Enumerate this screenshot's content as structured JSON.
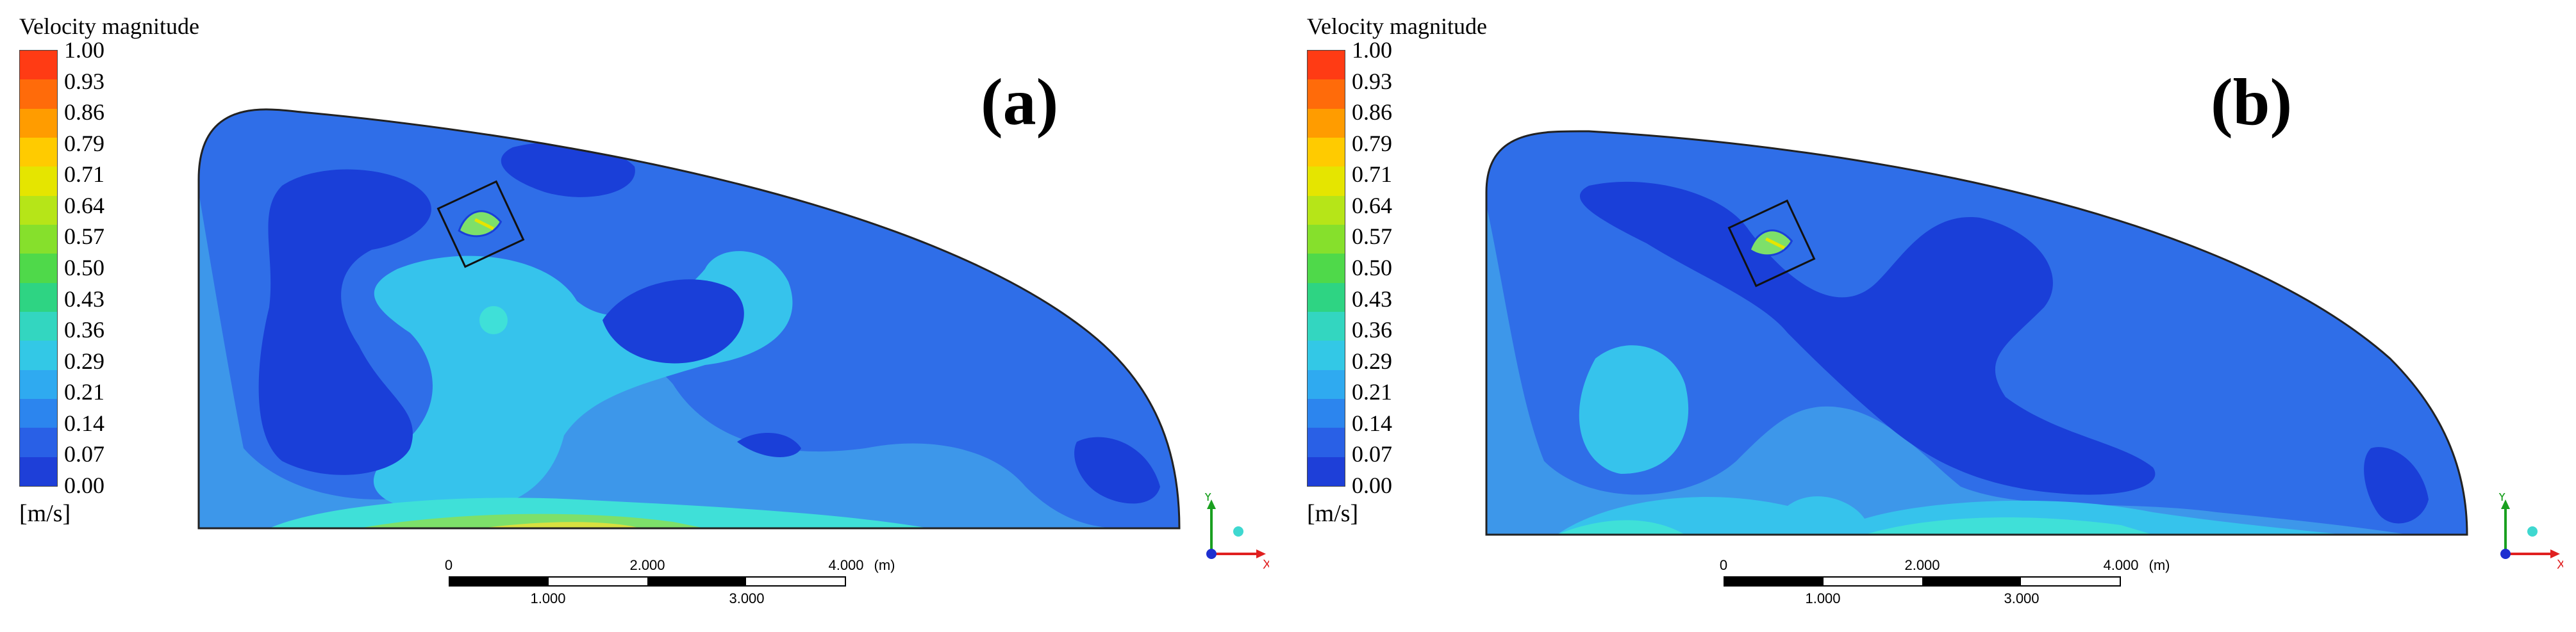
{
  "colors": {
    "deep": "#1a3fd8",
    "base": "#2f6ee8",
    "mid": "#3d97ea",
    "light": "#36c3ec",
    "cyan": "#3fe0d8",
    "green": "#7de06a",
    "yellow": "#d8e040"
  },
  "legend": {
    "title": "Velocity magnitude",
    "unit": "[m/s]",
    "ticks": [
      "1.00",
      "0.93",
      "0.86",
      "0.79",
      "0.71",
      "0.64",
      "0.57",
      "0.50",
      "0.43",
      "0.36",
      "0.29",
      "0.21",
      "0.14",
      "0.07",
      "0.00"
    ],
    "colors": [
      "#ff3b14",
      "#ff6b0a",
      "#ff9c00",
      "#ffcb00",
      "#e5e500",
      "#b6e518",
      "#86e02c",
      "#4fd94a",
      "#2ed483",
      "#33d6c0",
      "#33c8e6",
      "#2faaf0",
      "#2c85ee",
      "#2960e6",
      "#1e3fd8"
    ]
  },
  "scale": {
    "top_labels": [
      "0",
      "2.000",
      "4.000"
    ],
    "unit": "(m)",
    "bottom_labels": [
      "1.000",
      "3.000"
    ]
  },
  "axes": {
    "y": "Y",
    "x": "X"
  },
  "panels": [
    {
      "label": "(a)"
    },
    {
      "label": "(b)"
    }
  ]
}
